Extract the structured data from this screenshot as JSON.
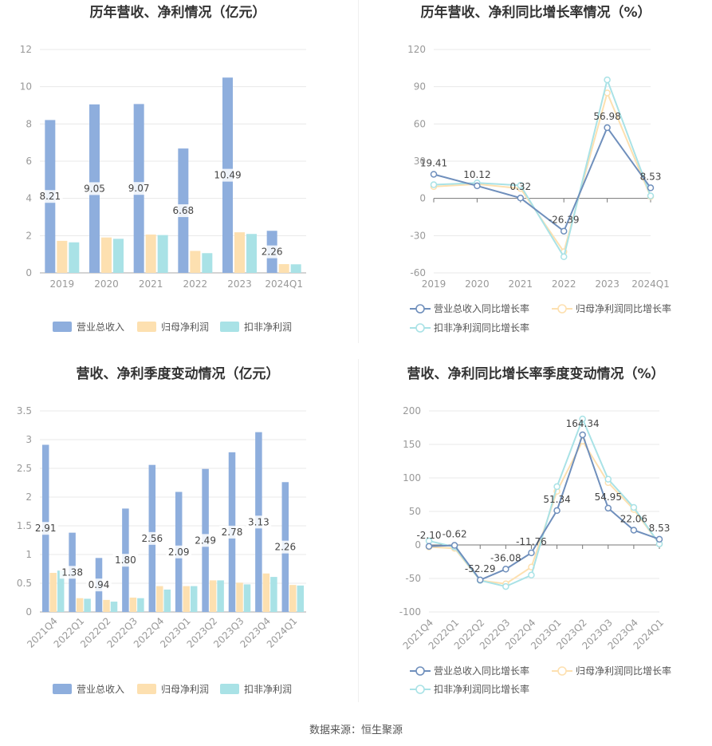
{
  "source": "数据来源：恒生聚源",
  "colors": {
    "revenue": "#8eaedd",
    "net_profit": "#fde0b0",
    "deducted_profit": "#a9e2e6",
    "axis": "#999999",
    "grid": "#e8e8e8",
    "label": "#444444"
  },
  "chart_data": [
    {
      "type": "bar",
      "title": "历年营收、净利情况（亿元）",
      "categories": [
        "2019",
        "2020",
        "2021",
        "2022",
        "2023",
        "2024Q1"
      ],
      "ylim": [
        0,
        12
      ],
      "yticks": [
        0,
        2,
        4,
        6,
        8,
        10,
        12
      ],
      "ytick_labels": [
        "0",
        "2",
        "4",
        "6",
        "8",
        "10",
        "12"
      ],
      "series": [
        {
          "name": "营业总收入",
          "color_key": "revenue",
          "values": [
            8.21,
            9.05,
            9.07,
            6.68,
            10.49,
            2.26
          ],
          "labels": [
            "8.21",
            "9.05",
            "9.07",
            "6.68",
            "10.49",
            "2.26"
          ]
        },
        {
          "name": "归母净利润",
          "color_key": "net_profit",
          "values": [
            1.72,
            1.9,
            2.06,
            1.18,
            2.18,
            0.47
          ]
        },
        {
          "name": "扣非净利润",
          "color_key": "deducted_profit",
          "values": [
            1.64,
            1.83,
            2.03,
            1.06,
            2.09,
            0.46
          ]
        }
      ],
      "legend_position": "bottom",
      "grid": true
    },
    {
      "type": "line",
      "title": "历年营收、净利同比增长率情况（%）",
      "categories": [
        "2019",
        "2020",
        "2021",
        "2022",
        "2023",
        "2024Q1"
      ],
      "ylim": [
        -60,
        120
      ],
      "yticks": [
        -60,
        -30,
        0,
        30,
        60,
        90,
        120
      ],
      "ytick_labels": [
        "-60",
        "-30",
        "0",
        "30",
        "60",
        "90",
        "120"
      ],
      "series": [
        {
          "name": "营业总收入同比增长率",
          "color_key": "revenue",
          "values": [
            19.41,
            10.12,
            0.32,
            -26.39,
            56.98,
            8.53
          ],
          "labels": [
            "19.41",
            "10.12",
            "0.32",
            "-26.39",
            "56.98",
            "8.53"
          ]
        },
        {
          "name": "归母净利润同比增长率",
          "color_key": "net_profit",
          "values": [
            9.5,
            11.5,
            8.0,
            -43.0,
            85.0,
            1.5
          ]
        },
        {
          "name": "扣非净利润同比增长率",
          "color_key": "deducted_profit",
          "values": [
            11.0,
            12.5,
            10.5,
            -47.0,
            95.5,
            2.0
          ]
        }
      ],
      "legend_position": "bottom",
      "grid": true
    },
    {
      "type": "bar",
      "title": "营收、净利季度变动情况（亿元）",
      "categories": [
        "2021Q4",
        "2022Q1",
        "2022Q2",
        "2022Q3",
        "2022Q4",
        "2023Q1",
        "2023Q2",
        "2023Q3",
        "2023Q4",
        "2024Q1"
      ],
      "ylim": [
        0,
        3.5
      ],
      "yticks": [
        0,
        0.5,
        1,
        1.5,
        2,
        2.5,
        3,
        3.5
      ],
      "ytick_labels": [
        "0",
        "0.5",
        "1",
        "1.5",
        "2",
        "2.5",
        "3",
        "3.5"
      ],
      "series": [
        {
          "name": "营业总收入",
          "color_key": "revenue",
          "values": [
            2.91,
            1.38,
            0.94,
            1.8,
            2.56,
            2.09,
            2.49,
            2.78,
            3.13,
            2.26
          ],
          "labels": [
            "2.91",
            "1.38",
            "0.94",
            "1.80",
            "2.56",
            "2.09",
            "2.49",
            "2.78",
            "3.13",
            "2.26"
          ]
        },
        {
          "name": "归母净利润",
          "color_key": "net_profit",
          "values": [
            0.68,
            0.24,
            0.21,
            0.25,
            0.45,
            0.45,
            0.55,
            0.51,
            0.67,
            0.47
          ]
        },
        {
          "name": "扣非净利润",
          "color_key": "deducted_profit",
          "values": [
            0.72,
            0.23,
            0.18,
            0.24,
            0.39,
            0.45,
            0.55,
            0.48,
            0.61,
            0.46
          ]
        }
      ],
      "legend_position": "bottom",
      "grid": true
    },
    {
      "type": "line",
      "title": "营收、净利同比增长率季度变动情况（%）",
      "categories": [
        "2021Q4",
        "2022Q1",
        "2022Q2",
        "2022Q3",
        "2022Q4",
        "2023Q1",
        "2023Q2",
        "2023Q3",
        "2023Q4",
        "2024Q1"
      ],
      "ylim": [
        -100,
        200
      ],
      "yticks": [
        -100,
        -50,
        0,
        50,
        100,
        150,
        200
      ],
      "ytick_labels": [
        "-100",
        "-50",
        "0",
        "50",
        "100",
        "150",
        "200"
      ],
      "series": [
        {
          "name": "营业总收入同比增长率",
          "color_key": "revenue",
          "values": [
            -2.1,
            -0.62,
            -52.29,
            -36.08,
            -11.76,
            51.34,
            164.34,
            54.95,
            22.06,
            8.53
          ],
          "labels": [
            "-2.10",
            "-0.62",
            "-52.29",
            "-36.08",
            "-11.76",
            "51.34",
            "164.34",
            "54.95",
            "22.06",
            "8.53"
          ]
        },
        {
          "name": "归母净利润同比增长率",
          "color_key": "net_profit",
          "values": [
            -3.0,
            -5.0,
            -53.0,
            -58.0,
            -33.0,
            80.0,
            155.0,
            93.0,
            53.0,
            1.5
          ]
        },
        {
          "name": "扣非净利润同比增长率",
          "color_key": "deducted_profit",
          "values": [
            6.0,
            -3.0,
            -53.0,
            -62.0,
            -45.0,
            87.0,
            188.0,
            98.0,
            56.0,
            1.5
          ]
        }
      ],
      "legend_position": "bottom",
      "grid": true
    }
  ]
}
